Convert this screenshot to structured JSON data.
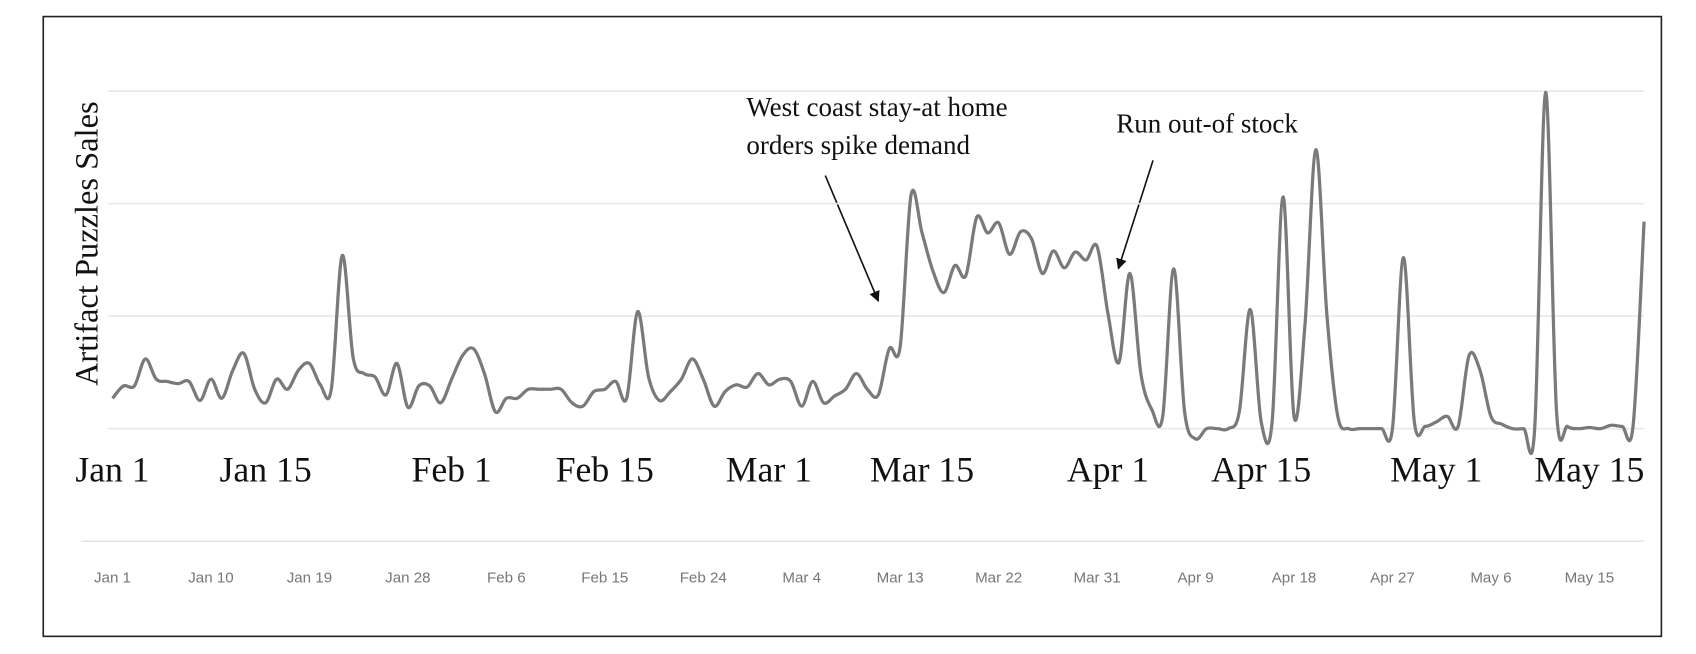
{
  "chart_data": {
    "type": "line",
    "ylabel": "Artifact Puzzles Sales",
    "series": [
      {
        "name": null,
        "color": "#7a7a7a",
        "values": [
          0.27,
          0.38,
          0.38,
          0.62,
          0.44,
          0.42,
          0.4,
          0.42,
          0.25,
          0.44,
          0.27,
          0.52,
          0.67,
          0.35,
          0.23,
          0.44,
          0.35,
          0.52,
          0.58,
          0.39,
          0.35,
          1.54,
          0.63,
          0.49,
          0.46,
          0.3,
          0.58,
          0.19,
          0.38,
          0.38,
          0.23,
          0.44,
          0.65,
          0.71,
          0.49,
          0.15,
          0.27,
          0.27,
          0.35,
          0.35,
          0.35,
          0.35,
          0.23,
          0.2,
          0.33,
          0.35,
          0.42,
          0.27,
          1.04,
          0.46,
          0.25,
          0.33,
          0.44,
          0.62,
          0.44,
          0.2,
          0.33,
          0.39,
          0.37,
          0.49,
          0.39,
          0.44,
          0.42,
          0.2,
          0.42,
          0.23,
          0.29,
          0.35,
          0.49,
          0.35,
          0.3,
          0.71,
          0.73,
          2.08,
          1.74,
          1.4,
          1.21,
          1.45,
          1.36,
          1.88,
          1.74,
          1.83,
          1.55,
          1.75,
          1.69,
          1.38,
          1.58,
          1.43,
          1.57,
          1.5,
          1.62,
          1.02,
          0.59,
          1.38,
          0.49,
          0.17,
          0.11,
          1.42,
          0.15,
          -0.09,
          0,
          0,
          0,
          0.15,
          1.06,
          0.06,
          0.06,
          2.06,
          0.11,
          0.92,
          2.48,
          1.02,
          0.11,
          0,
          0,
          0,
          0,
          0,
          1.52,
          0.06,
          0.02,
          0.06,
          0.11,
          0.02,
          0.65,
          0.52,
          0.11,
          0.04,
          0,
          0,
          0,
          2.99,
          0.15,
          0.02,
          0,
          0.01,
          0,
          0.03,
          0.02,
          0.03,
          1.84
        ]
      }
    ],
    "xlim": [
      0,
      140
    ],
    "ylim": [
      -0.2,
      3.1
    ],
    "yticks": [
      0,
      1,
      2,
      3
    ],
    "grid": true,
    "date_labels": [
      {
        "value": 0,
        "label": "Jan 1"
      },
      {
        "value": 14,
        "label": "Jan 15"
      },
      {
        "value": 31,
        "label": "Feb 1"
      },
      {
        "value": 45,
        "label": "Feb 15"
      },
      {
        "value": 60,
        "label": "Mar 1"
      },
      {
        "value": 74,
        "label": "Mar 15"
      },
      {
        "value": 91,
        "label": "Apr 1"
      },
      {
        "value": 105,
        "label": "Apr 15"
      },
      {
        "value": 121,
        "label": "May 1"
      },
      {
        "value": 135,
        "label": "May 15"
      }
    ],
    "xticks": [
      {
        "value": 0,
        "label": "Jan 1"
      },
      {
        "value": 9,
        "label": "Jan 10"
      },
      {
        "value": 18,
        "label": "Jan 19"
      },
      {
        "value": 27,
        "label": "Jan 28"
      },
      {
        "value": 36,
        "label": "Feb 6"
      },
      {
        "value": 45,
        "label": "Feb 15"
      },
      {
        "value": 54,
        "label": "Feb 24"
      },
      {
        "value": 63,
        "label": "Mar 4"
      },
      {
        "value": 72,
        "label": "Mar 13"
      },
      {
        "value": 81,
        "label": "Mar 22"
      },
      {
        "value": 90,
        "label": "Mar 31"
      },
      {
        "value": 99,
        "label": "Apr 9"
      },
      {
        "value": 108,
        "label": "Apr 18"
      },
      {
        "value": 117,
        "label": "Apr 27"
      },
      {
        "value": 126,
        "label": "May 6"
      },
      {
        "value": 135,
        "label": "May 15"
      }
    ],
    "annotations": [
      {
        "lines": [
          "West coast stay-at home",
          "orders spike demand"
        ]
      },
      {
        "lines": [
          "Run out-of stock"
        ]
      }
    ]
  }
}
